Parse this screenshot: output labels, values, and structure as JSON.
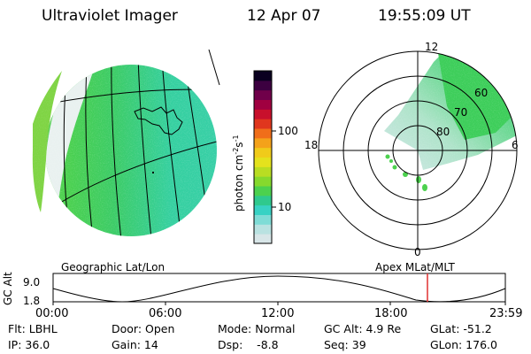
{
  "header": {
    "title": "Ultraviolet Imager",
    "date": "12 Apr 07",
    "time": "19:55:09 UT"
  },
  "colorbar": {
    "unit_base": "photon cm",
    "unit_exp1": "-2",
    "unit_mid": "s",
    "unit_exp2": "-1",
    "tick_100": "100",
    "tick_10": "10",
    "colors": [
      "#d8e6e8",
      "#b9e2e1",
      "#7fdcd6",
      "#38d2c4",
      "#2fc98e",
      "#4cd14e",
      "#86d92d",
      "#b9dd22",
      "#e4e21d",
      "#f0cb1a",
      "#f4a21a",
      "#f06e1a",
      "#e0361e",
      "#c8102c",
      "#a00040",
      "#70004a",
      "#3c0040",
      "#0a0020"
    ]
  },
  "polar": {
    "mlt_top": "12",
    "mlt_left": "18",
    "mlt_right": "6",
    "mlt_bottom": "0",
    "lat_60": "60",
    "lat_70": "70",
    "lat_80": "80"
  },
  "altitude_plot": {
    "left_label": "Geographic Lat/Lon",
    "right_label": "Apex MLat/MLT",
    "axis_title": "GC Alt",
    "y_max": "9.0",
    "y_min": "1.8",
    "x_ticks": [
      "00:00",
      "06:00",
      "12:00",
      "18:00",
      "23:59"
    ]
  },
  "info": {
    "flt": "Flt: LBHL",
    "ip": "IP: 36.0",
    "door": "Door: Open",
    "gain": "Gain: 14",
    "mode": "Mode: Normal",
    "dsp": "Dsp:    -8.8",
    "gc_alt": "GC Alt: 4.9 Re",
    "seq": "Seq: 39",
    "glat": "GLat: -51.2",
    "glon": "GLon: 176.0"
  }
}
